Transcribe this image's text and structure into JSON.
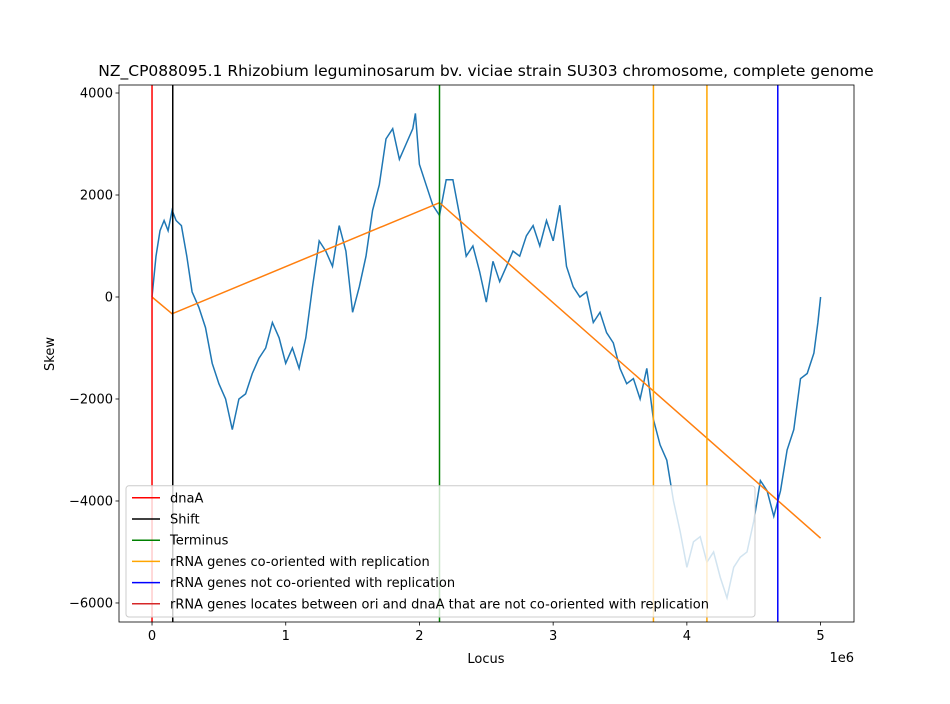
{
  "chart_data": {
    "type": "line",
    "title": "NZ_CP088095.1 Rhizobium leguminosarum bv. viciae strain SU303 chromosome, complete genome",
    "xlabel": "Locus",
    "ylabel": "Skew",
    "x_offset_label": "1e6",
    "xlim": [
      -247000,
      5250000
    ],
    "ylim": [
      -6373,
      4157
    ],
    "xticks": [
      0,
      {
        "value": 1000000,
        "label": "1"
      },
      {
        "value": 2000000,
        "label": "2"
      },
      {
        "value": 3000000,
        "label": "3"
      },
      {
        "value": 4000000,
        "label": "4"
      },
      {
        "value": 5000000,
        "label": "5"
      }
    ],
    "yticks": [
      {
        "value": -6000,
        "label": "−6000"
      },
      {
        "value": -4000,
        "label": "−4000"
      },
      {
        "value": -2000,
        "label": "−2000"
      },
      0,
      2000,
      4000
    ],
    "legend": "lower left",
    "skew": {
      "color": "#1f77b4",
      "x": [
        0,
        30000,
        60000,
        90000,
        120000,
        150000,
        180000,
        220000,
        260000,
        300000,
        350000,
        400000,
        450000,
        500000,
        550000,
        600000,
        650000,
        700000,
        750000,
        800000,
        850000,
        900000,
        950000,
        1000000,
        1050000,
        1100000,
        1150000,
        1200000,
        1250000,
        1300000,
        1350000,
        1400000,
        1450000,
        1500000,
        1550000,
        1600000,
        1650000,
        1700000,
        1750000,
        1800000,
        1850000,
        1900000,
        1950000,
        1970000,
        2000000,
        2050000,
        2100000,
        2150000,
        2200000,
        2250000,
        2300000,
        2350000,
        2400000,
        2450000,
        2500000,
        2550000,
        2600000,
        2650000,
        2700000,
        2750000,
        2800000,
        2850000,
        2900000,
        2950000,
        3000000,
        3050000,
        3100000,
        3150000,
        3200000,
        3250000,
        3300000,
        3350000,
        3400000,
        3450000,
        3500000,
        3550000,
        3600000,
        3650000,
        3700000,
        3750000,
        3800000,
        3850000,
        3900000,
        3950000,
        4000000,
        4050000,
        4100000,
        4150000,
        4200000,
        4250000,
        4300000,
        4350000,
        4400000,
        4450000,
        4500000,
        4550000,
        4600000,
        4650000,
        4700000,
        4750000,
        4800000,
        4850000,
        4900000,
        4950000,
        4980000,
        5000000
      ],
      "values": [
        0,
        800,
        1300,
        1500,
        1300,
        1700,
        1500,
        1400,
        800,
        100,
        -200,
        -600,
        -1300,
        -1700,
        -2000,
        -2600,
        -2000,
        -1900,
        -1500,
        -1200,
        -1000,
        -500,
        -800,
        -1300,
        -1000,
        -1400,
        -800,
        200,
        1100,
        900,
        600,
        1400,
        900,
        -300,
        200,
        800,
        1700,
        2200,
        3100,
        3300,
        2700,
        3000,
        3300,
        3600,
        2600,
        2200,
        1800,
        1600,
        2300,
        2300,
        1600,
        800,
        1000,
        500,
        -100,
        700,
        300,
        600,
        900,
        800,
        1200,
        1400,
        1000,
        1500,
        1100,
        1800,
        600,
        200,
        0,
        100,
        -500,
        -300,
        -700,
        -900,
        -1400,
        -1700,
        -1600,
        -2000,
        -1400,
        -2400,
        -2900,
        -3200,
        -4000,
        -4600,
        -5300,
        -4800,
        -4700,
        -5200,
        -5000,
        -5500,
        -5900,
        -5300,
        -5100,
        -5000,
        -4400,
        -3600,
        -3800,
        -4300,
        -3800,
        -3000,
        -2600,
        -1600,
        -1500,
        -1100,
        -500,
        0
      ]
    },
    "fit": {
      "color": "#ff7f0e",
      "x": [
        0,
        150000,
        2150000,
        5000000
      ],
      "values": [
        0,
        -330,
        1850,
        -4730
      ]
    },
    "vlines": [
      {
        "name": "dnaA",
        "color": "#ff0000",
        "positions": [
          0
        ]
      },
      {
        "name": "Shift",
        "color": "#000000",
        "positions": [
          155000
        ]
      },
      {
        "name": "Terminus",
        "color": "#008000",
        "positions": [
          2150000
        ]
      },
      {
        "name": "rRNA genes co-oriented with replication",
        "color": "#ffa500",
        "positions": [
          3750000,
          4150000
        ]
      },
      {
        "name": "rRNA genes not co-oriented with replication",
        "color": "#0000ff",
        "positions": [
          4680000
        ]
      },
      {
        "name": "rRNA genes locates between ori and dnaA that are not co-oriented with replication",
        "color": "#d62728",
        "positions": []
      }
    ]
  }
}
